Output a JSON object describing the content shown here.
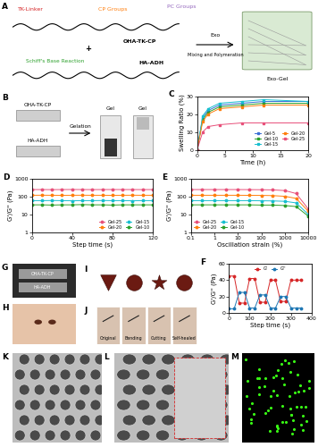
{
  "schematic": {
    "label": "A",
    "tk_linker": "TK-Linker",
    "cp_groups": "CP Groups",
    "pc_groups": "PC Groups",
    "polymer_1": "OHA-TK-CP",
    "plus": "+",
    "reaction": "Schiff's Base Reaction",
    "polymer_2": "HA-ADH",
    "exo": "Exo",
    "process": "Mixing and Polymeration",
    "product": "Exo-Gel"
  },
  "gelation_photo": {
    "label": "B",
    "component_1": "OHA-TK-CP",
    "component_2": "HA-ADH",
    "step": "Gelation",
    "result_1": "Gel",
    "result_2": "Gel"
  },
  "syringe_photo": {
    "label": "G",
    "barrel_1": "OHA-TK-CP",
    "barrel_2": "HA-ADH"
  },
  "skin_photo": {
    "label": "H"
  },
  "shape_photos": {
    "label": "I"
  },
  "self_healing_photos": {
    "label": "J",
    "steps": [
      "Original",
      "Bending",
      "Cutting",
      "Self-healed"
    ]
  },
  "sem_images": [
    {
      "label": "K"
    },
    {
      "label": "L"
    }
  ],
  "fluorescence_image": {
    "label": "M"
  },
  "chart_data": [
    {
      "panel_label": "C",
      "type": "line",
      "x_label": "Time (h)",
      "y_label": "Swelling Ratio (%)",
      "x": [
        0,
        1,
        2,
        4,
        8,
        12,
        20
      ],
      "xlim": [
        0,
        20
      ],
      "xticks": [
        0,
        5,
        10,
        15,
        20
      ],
      "ylim": [
        0,
        30
      ],
      "yticks": [
        0,
        10,
        20,
        30
      ],
      "marker": "square",
      "line_style": "solid",
      "legend": "lower right",
      "series": [
        {
          "name": "Gel-5",
          "color": "#3b6fd6",
          "values": [
            0,
            18,
            22,
            25,
            26,
            27,
            27
          ]
        },
        {
          "name": "Gel-10",
          "color": "#2ca02c",
          "values": [
            0,
            17,
            21,
            24,
            25,
            26,
            26
          ]
        },
        {
          "name": "Gel-15",
          "color": "#17becf",
          "values": [
            0,
            19,
            23,
            26,
            27,
            28,
            27
          ]
        },
        {
          "name": "Gel-20",
          "color": "#ff7f0e",
          "values": [
            0,
            16,
            20,
            23,
            24,
            25,
            25
          ]
        },
        {
          "name": "Gel-25",
          "color": "#e8507a",
          "values": [
            0,
            10,
            13,
            14,
            15,
            15,
            15
          ]
        }
      ]
    },
    {
      "panel_label": "D",
      "type": "line",
      "x_label": "Step time (s)",
      "y_label": "G'/G'' (Pa)",
      "log": "y",
      "x": [
        0,
        10,
        20,
        30,
        40,
        50,
        60,
        70,
        80,
        90,
        100,
        110,
        120
      ],
      "xlim": [
        0,
        120
      ],
      "xticks": [
        0,
        40,
        80,
        120
      ],
      "ylim": [
        1,
        1000
      ],
      "yticks": [
        1,
        10,
        100,
        1000
      ],
      "marker": "circle",
      "line_style": "solid",
      "legend": "lower right",
      "series": [
        {
          "name": "Gel-25",
          "color": "#e8507a",
          "values": [
            250,
            250,
            248,
            250,
            252,
            250,
            249,
            250,
            251,
            250,
            250,
            249,
            250
          ]
        },
        {
          "name": "Gel-20",
          "color": "#ff7f0e",
          "values": [
            120,
            121,
            120,
            119,
            120,
            121,
            120,
            120,
            119,
            120,
            121,
            120,
            120
          ]
        },
        {
          "name": "Gel-15",
          "color": "#17becf",
          "values": [
            60,
            60,
            61,
            60,
            59,
            60,
            60,
            61,
            60,
            60,
            59,
            60,
            60
          ]
        },
        {
          "name": "Gel-10",
          "color": "#2ca02c",
          "values": [
            35,
            35,
            34,
            35,
            35,
            36,
            35,
            35,
            34,
            35,
            35,
            35,
            35
          ]
        }
      ]
    },
    {
      "panel_label": "E",
      "type": "line",
      "x_label": "Oscillation strain (%)",
      "y_label": "G'/G'' (Pa)",
      "log": true,
      "x": [
        0.1,
        0.3,
        1,
        3,
        10,
        30,
        100,
        300,
        1000,
        3000,
        10000
      ],
      "xlim": [
        0.1,
        10000
      ],
      "xticks": [
        0.1,
        1,
        10,
        100,
        1000,
        10000
      ],
      "ylim": [
        1,
        1000
      ],
      "yticks": [
        1,
        10,
        100,
        1000
      ],
      "marker": "circle",
      "line_style": "solid",
      "legend": "lower left",
      "series": [
        {
          "name": "Gel-25",
          "color": "#e8507a",
          "values": [
            250,
            250,
            250,
            250,
            250,
            248,
            245,
            240,
            220,
            150,
            20
          ]
        },
        {
          "name": "Gel-20",
          "color": "#ff7f0e",
          "values": [
            120,
            120,
            120,
            120,
            120,
            119,
            118,
            115,
            105,
            80,
            15
          ]
        },
        {
          "name": "Gel-15",
          "color": "#17becf",
          "values": [
            60,
            60,
            60,
            60,
            60,
            60,
            59,
            58,
            55,
            45,
            10
          ]
        },
        {
          "name": "Gel-10",
          "color": "#2ca02c",
          "values": [
            35,
            35,
            35,
            35,
            35,
            35,
            34,
            34,
            32,
            28,
            8
          ]
        }
      ]
    },
    {
      "panel_label": "F",
      "type": "line",
      "x_label": "Step time (s)",
      "y_label": "G'/G'' (Pa)",
      "x": [
        0,
        25,
        50,
        75,
        100,
        125,
        150,
        175,
        200,
        225,
        250,
        275,
        300,
        325,
        350
      ],
      "xlim": [
        0,
        400
      ],
      "xticks": [
        0,
        100,
        200,
        300,
        400
      ],
      "ylim": [
        0,
        60
      ],
      "yticks": [
        0,
        20,
        40,
        60
      ],
      "marker": "circle",
      "line_style": "solid",
      "legend": "upper center",
      "series": [
        {
          "name": "G'",
          "color": "#d62728",
          "values": [
            45,
            45,
            12,
            12,
            42,
            42,
            13,
            13,
            40,
            40,
            14,
            14,
            40,
            40,
            40
          ]
        },
        {
          "name": "G''",
          "color": "#1f77b4",
          "values": [
            5,
            5,
            25,
            25,
            6,
            6,
            22,
            22,
            6,
            6,
            20,
            20,
            6,
            6,
            6
          ]
        }
      ]
    }
  ]
}
